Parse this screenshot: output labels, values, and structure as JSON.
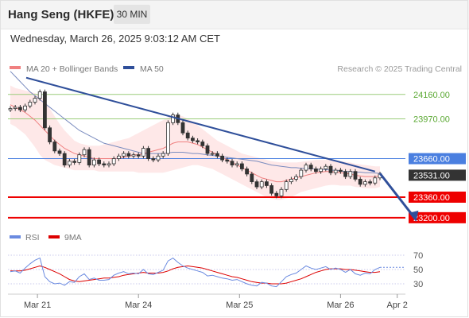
{
  "header": {
    "instrument": "Hang Seng (HKFE)",
    "interval": "30 MIN"
  },
  "timestamp": "Wednesday, March 26, 2025 9:03:12 AM CET",
  "credit": "Research © 2025 Trading Central",
  "colors": {
    "price": "#333333",
    "ma20": "#f08080",
    "ma50": "#7a8cbf",
    "band": "#fde0e0",
    "trend": "#2f4f9a",
    "green": "#9bcc7a",
    "support": "#ee0000",
    "pivot": "#4a7fe0",
    "rsi": "#6a8ae0",
    "rsi9": "#dd0000"
  },
  "chart_data": [
    {
      "type": "line",
      "legend": [
        {
          "name": "MA 20 + Bollinger Bands",
          "color": "#f08080"
        },
        {
          "name": "MA 50",
          "color": "#2f4f9a"
        }
      ],
      "x_ticks": [
        "Mar 21",
        "Mar 24",
        "Mar 25",
        "Mar 26",
        "Apr 2"
      ],
      "ylim": [
        23100,
        24400
      ],
      "levels": [
        {
          "label": "24160.00",
          "value": 24160,
          "style": "green"
        },
        {
          "label": "23970.00",
          "value": 23970,
          "style": "green"
        },
        {
          "label": "23660.00",
          "value": 23660,
          "style": "pivot"
        },
        {
          "label": "23531.00",
          "value": 23531,
          "style": "last"
        },
        {
          "label": "23360.00",
          "value": 23360,
          "style": "support"
        },
        {
          "label": "23200.00",
          "value": 23200,
          "style": "support"
        }
      ],
      "price": [
        24050,
        24060,
        24040,
        24070,
        24100,
        24130,
        24180,
        23900,
        23790,
        23720,
        23700,
        23610,
        23640,
        23630,
        23690,
        23730,
        23610,
        23650,
        23620,
        23610,
        23620,
        23660,
        23680,
        23700,
        23680,
        23690,
        23680,
        23740,
        23660,
        23650,
        23680,
        23700,
        23940,
        24000,
        23940,
        23860,
        23820,
        23800,
        23790,
        23760,
        23700,
        23700,
        23680,
        23650,
        23640,
        23610,
        23620,
        23580,
        23540,
        23480,
        23440,
        23480,
        23450,
        23390,
        23370,
        23420,
        23480,
        23500,
        23520,
        23570,
        23610,
        23580,
        23560,
        23580,
        23600,
        23550,
        23570,
        23560,
        23520,
        23560,
        23500,
        23460,
        23480,
        23470,
        23510,
        23540
      ],
      "ma20": [
        24080,
        24060,
        24040,
        24020,
        23990,
        23960,
        23920,
        23880,
        23840,
        23800,
        23770,
        23740,
        23720,
        23700,
        23690,
        23680,
        23670,
        23660,
        23660,
        23660,
        23660,
        23660,
        23665,
        23670,
        23680,
        23690,
        23690,
        23700,
        23710,
        23720,
        23730,
        23740,
        23760,
        23780,
        23790,
        23790,
        23790,
        23780,
        23770,
        23750,
        23730,
        23710,
        23690,
        23670,
        23650,
        23630,
        23610,
        23590,
        23570,
        23550,
        23530,
        23510,
        23500,
        23490,
        23480,
        23480,
        23490,
        23500,
        23510,
        23520,
        23530,
        23540,
        23550,
        23555,
        23560,
        23560,
        23555,
        23550,
        23545,
        23540,
        23530,
        23525,
        23520,
        23520,
        23520,
        23525
      ],
      "upper": [
        24230,
        24210,
        24200,
        24190,
        24180,
        24170,
        24150,
        24110,
        24050,
        23990,
        23930,
        23880,
        23840,
        23800,
        23780,
        23770,
        23760,
        23760,
        23760,
        23770,
        23780,
        23790,
        23800,
        23810,
        23820,
        23840,
        23860,
        23880,
        23900,
        23920,
        23940,
        23960,
        23980,
        24000,
        24000,
        23990,
        23970,
        23950,
        23920,
        23890,
        23860,
        23830,
        23800,
        23780,
        23760,
        23740,
        23720,
        23700,
        23690,
        23680,
        23670,
        23660,
        23650,
        23640,
        23635,
        23630,
        23630,
        23630,
        23630,
        23635,
        23640,
        23645,
        23650,
        23650,
        23650,
        23650,
        23645,
        23640,
        23635,
        23630,
        23620,
        23615,
        23610,
        23605,
        23600,
        23600
      ],
      "lower": [
        23930,
        23910,
        23880,
        23850,
        23800,
        23750,
        23690,
        23650,
        23630,
        23610,
        23600,
        23590,
        23580,
        23570,
        23570,
        23570,
        23570,
        23570,
        23560,
        23560,
        23560,
        23560,
        23560,
        23560,
        23560,
        23560,
        23550,
        23550,
        23550,
        23550,
        23550,
        23550,
        23560,
        23570,
        23580,
        23590,
        23600,
        23610,
        23610,
        23600,
        23590,
        23580,
        23560,
        23540,
        23520,
        23500,
        23480,
        23460,
        23440,
        23420,
        23400,
        23380,
        23360,
        23350,
        23340,
        23340,
        23350,
        23360,
        23380,
        23400,
        23410,
        23420,
        23430,
        23440,
        23450,
        23455,
        23455,
        23450,
        23450,
        23450,
        23440,
        23435,
        23430,
        23430,
        23430,
        23440
      ],
      "ma50": [
        24340,
        24300,
        24260,
        24220,
        24180,
        24150,
        24120,
        24090,
        24060,
        24030,
        24000,
        23970,
        23940,
        23910,
        23880,
        23860,
        23840,
        23820,
        23800,
        23780,
        23770,
        23760,
        23750,
        23740,
        23730,
        23720,
        23710,
        23700,
        23700,
        23700,
        23700,
        23700,
        23705,
        23710,
        23710,
        23710,
        23705,
        23700,
        23700,
        23695,
        23690,
        23685,
        23680,
        23675,
        23670,
        23665,
        23660,
        23655,
        23650,
        23645,
        23640,
        23630,
        23620,
        23610,
        23605,
        23600,
        23595,
        23590,
        23590,
        23585,
        23585,
        23580,
        23580,
        23575,
        23575,
        23570,
        23570,
        23565,
        23560,
        23560,
        23555,
        23555,
        23550,
        23550,
        23548,
        23545
      ],
      "trendline": [
        [
          0,
          24290
        ],
        [
          74,
          23560
        ]
      ],
      "forecast_arrow": [
        [
          75,
          23545
        ],
        [
          82,
          23200
        ]
      ]
    },
    {
      "type": "line",
      "legend": [
        {
          "name": "RSI",
          "color": "#6a8ae0"
        },
        {
          "name": "9MA",
          "color": "#dd0000"
        }
      ],
      "ylim": [
        20,
        80
      ],
      "y_ticks": [
        70,
        50,
        30
      ],
      "rsi": [
        47,
        48,
        45,
        52,
        58,
        63,
        66,
        40,
        33,
        30,
        31,
        28,
        33,
        32,
        40,
        44,
        36,
        38,
        35,
        35,
        36,
        42,
        45,
        47,
        44,
        45,
        44,
        50,
        44,
        43,
        46,
        49,
        62,
        66,
        60,
        55,
        52,
        50,
        48,
        46,
        41,
        42,
        40,
        38,
        37,
        35,
        36,
        33,
        30,
        28,
        27,
        32,
        31,
        27,
        26,
        33,
        40,
        43,
        45,
        50,
        55,
        52,
        50,
        52,
        54,
        50,
        52,
        50,
        46,
        50,
        44,
        42,
        45,
        44,
        50,
        53
      ],
      "rsi_ma": [
        48,
        48,
        48,
        49,
        51,
        53,
        55,
        53,
        50,
        47,
        44,
        40,
        36,
        34,
        33,
        34,
        35,
        36,
        37,
        38,
        38,
        39,
        40,
        42,
        43,
        44,
        45,
        46,
        45,
        45,
        45,
        46,
        48,
        51,
        53,
        54,
        55,
        54,
        53,
        52,
        50,
        48,
        46,
        44,
        42,
        40,
        39,
        37,
        35,
        33,
        32,
        31,
        31,
        30,
        30,
        30,
        31,
        33,
        35,
        37,
        40,
        43,
        46,
        48,
        50,
        51,
        51,
        51,
        50,
        50,
        49,
        48,
        47,
        46,
        46,
        47
      ]
    }
  ]
}
